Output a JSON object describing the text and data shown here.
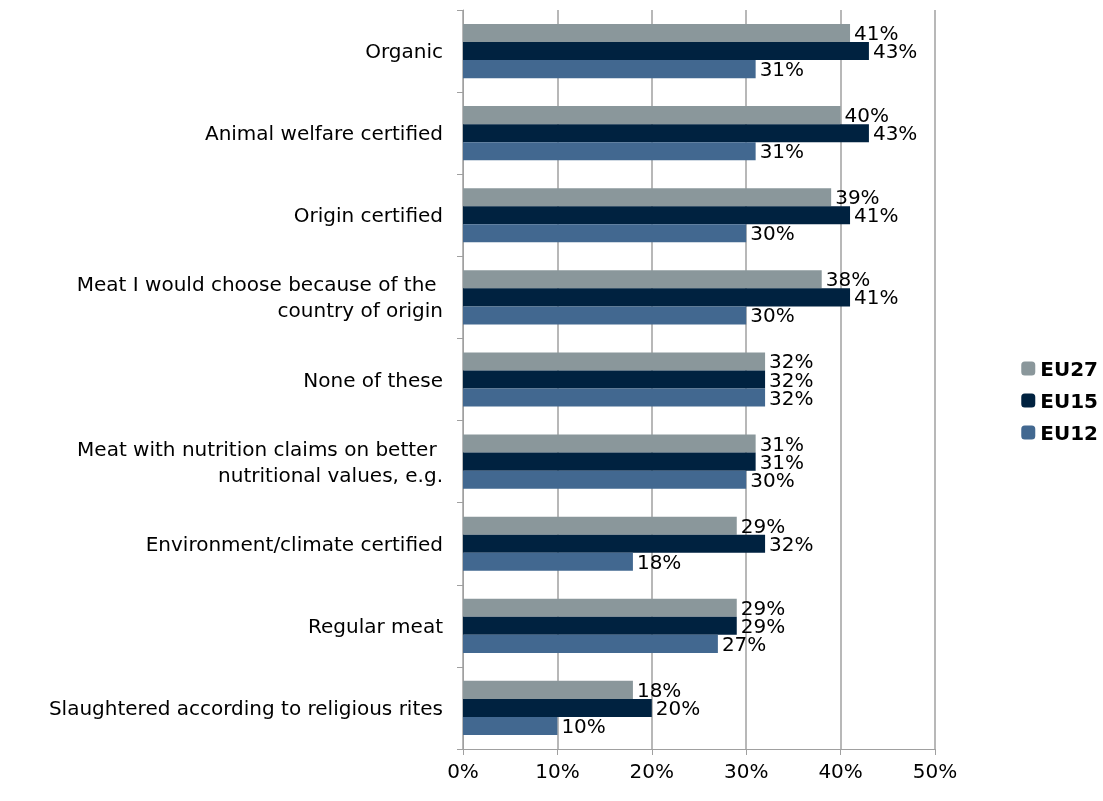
{
  "chart_data": {
    "type": "bar",
    "orientation": "horizontal",
    "categories": [
      "Organic",
      "Animal welfare certified",
      "Origin certified",
      "Meat I would choose because of the country of origin",
      "None of these",
      "Meat with nutrition claims on better nutritional values, e.g.",
      "Environment/climate certified",
      "Regular meat",
      "Slaughtered according to religious rites"
    ],
    "series": [
      {
        "name": "EU27",
        "color": "#8a979b",
        "values": [
          41,
          40,
          39,
          38,
          32,
          31,
          29,
          29,
          18
        ],
        "value_labels": [
          "41%",
          "40%",
          "39%",
          "38%",
          "32%",
          "31%",
          "29%",
          "29%",
          "18%"
        ]
      },
      {
        "name": "EU15",
        "color": "#002240",
        "values": [
          43,
          43,
          41,
          41,
          32,
          31,
          32,
          29,
          20
        ],
        "value_labels": [
          "43%",
          "43%",
          "41%",
          "41%",
          "32%",
          "31%",
          "32%",
          "29%",
          "20%"
        ]
      },
      {
        "name": "EU12",
        "color": "#426890",
        "values": [
          31,
          31,
          30,
          30,
          32,
          30,
          18,
          27,
          10
        ],
        "value_labels": [
          "31%",
          "31%",
          "30%",
          "30%",
          "32%",
          "30%",
          "18%",
          "27%",
          "10%"
        ]
      }
    ],
    "xlim": [
      0,
      50
    ],
    "xticks": [
      {
        "value": 0,
        "label": "0%"
      },
      {
        "value": 10,
        "label": "10%"
      },
      {
        "value": 20,
        "label": "20%"
      },
      {
        "value": 30,
        "label": "30%"
      },
      {
        "value": 40,
        "label": "40%"
      },
      {
        "value": 50,
        "label": "50%"
      }
    ],
    "grid": "x",
    "legend": "right"
  }
}
